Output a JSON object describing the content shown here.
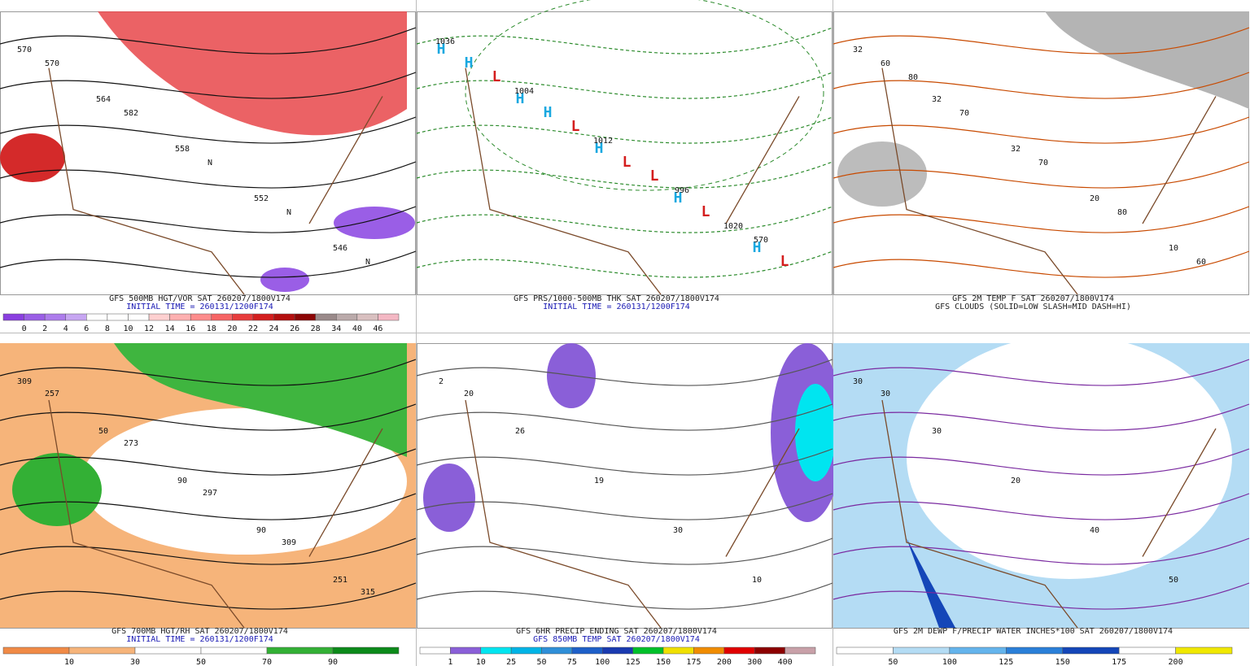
{
  "panels": [
    {
      "caption": [
        "GFS 500MB HGT/VOR SAT 260207/1800V174",
        "INITIAL TIME = 260131/1200F174"
      ],
      "colorbar": {
        "ticks": [
          0,
          2,
          4,
          6,
          8,
          10,
          12,
          14,
          16,
          18,
          20,
          22,
          24,
          26,
          28,
          34,
          40,
          46
        ],
        "colors": [
          "#8a3fe0",
          "#9a5ee6",
          "#ad7cec",
          "#c7a6f2",
          "#ffffff",
          "#ffffff",
          "#ffffff",
          "#ffd0d0",
          "#ffb0b0",
          "#ff8c8c",
          "#f76464",
          "#e83c3c",
          "#d41e1e",
          "#b40f0f",
          "#8c0505",
          "#9a8a8a",
          "#bbaaaa",
          "#d9c0c0",
          "#f4b8c4"
        ]
      },
      "labels": [
        "570",
        "564",
        "558",
        "552",
        "546",
        "570",
        "582",
        "N",
        "N",
        "N"
      ]
    },
    {
      "caption": [
        "GFS PRS/1000-500MB THK SAT 260207/1800V174",
        "INITIAL TIME = 260131/1200F174"
      ],
      "labels": [
        "H",
        "H",
        "H",
        "H",
        "H",
        "H",
        "H",
        "L",
        "L",
        "L",
        "L",
        "L",
        "L",
        "1020",
        "1036",
        "1004",
        "1012",
        "996",
        "570"
      ]
    },
    {
      "caption": [
        "GFS 2M TEMP F SAT 260207/1800V174",
        "GFS CLOUDS (SOLID=LOW SLASH=MID DASH=HI)"
      ],
      "labels": [
        "32",
        "32",
        "32",
        "20",
        "10",
        "60",
        "70",
        "70",
        "80",
        "60",
        "80"
      ]
    },
    {
      "caption": [
        "GFS 700MB HGT/RH SAT 260207/1800V174",
        "INITIAL TIME = 260131/1200F174"
      ],
      "colorbar": {
        "ticks": [
          10,
          30,
          50,
          70,
          90
        ],
        "colors": [
          "#f08a46",
          "#f6b47a",
          "#ffffff",
          "#ffffff",
          "#33b035",
          "#0c8a1a"
        ]
      },
      "labels": [
        "309",
        "50",
        "90",
        "90",
        "251",
        "257",
        "273",
        "297",
        "309",
        "315"
      ]
    },
    {
      "caption": [
        "GFS 6HR PRECIP ENDING SAT 260207/1800V174",
        "GFS 850MB TEMP SAT 260207/1800V174"
      ],
      "colorbar": {
        "ticks": [
          1,
          10,
          25,
          50,
          75,
          100,
          125,
          150,
          175,
          200,
          300,
          400
        ],
        "colors": [
          "#ffffff",
          "#8a5fd8",
          "#00e5f0",
          "#00b4e6",
          "#2f8fd8",
          "#1e5fc8",
          "#1a3ab0",
          "#00c02a",
          "#f0e000",
          "#f08c00",
          "#e00000",
          "#8c0000",
          "#c8a0a8"
        ]
      },
      "labels": [
        "2",
        "26",
        "19",
        "30",
        "10",
        "20"
      ]
    },
    {
      "caption": [
        "GFS 2M DEWP F/PRECIP WATER INCHES*100 SAT 260207/1800V174"
      ],
      "colorbar": {
        "ticks": [
          50,
          100,
          125,
          150,
          175,
          200
        ],
        "colors": [
          "#ffffff",
          "#b4dcf4",
          "#64b4ec",
          "#2a7fd8",
          "#1446b8",
          "#ffffff",
          "#f0e800"
        ]
      },
      "labels": [
        "30",
        "30",
        "20",
        "40",
        "50",
        "30"
      ]
    }
  ]
}
